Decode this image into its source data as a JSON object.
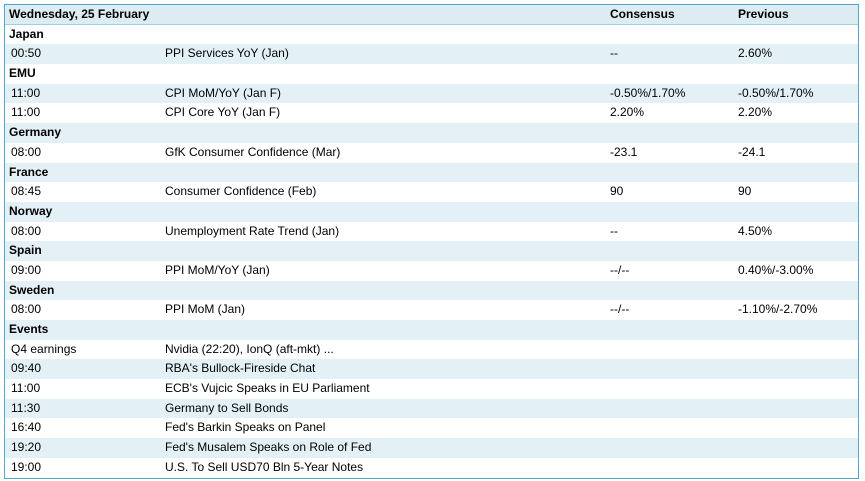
{
  "header": {
    "date": "Wednesday, 25 February",
    "consensus": "Consensus",
    "previous": "Previous"
  },
  "sections": [
    {
      "name": "Japan",
      "rows": [
        [
          "00:50",
          "PPI Services YoY (Jan)",
          "--",
          "2.60%"
        ]
      ]
    },
    {
      "name": "EMU",
      "rows": [
        [
          "11:00",
          "CPI MoM/YoY (Jan F)",
          "-0.50%/1.70%",
          "-0.50%/1.70%"
        ],
        [
          "11:00",
          "CPI Core YoY (Jan F)",
          "2.20%",
          "2.20%"
        ]
      ]
    },
    {
      "name": "Germany",
      "rows": [
        [
          "08:00",
          "GfK Consumer Confidence (Mar)",
          "-23.1",
          "-24.1"
        ]
      ]
    },
    {
      "name": "France",
      "rows": [
        [
          "08:45",
          "Consumer Confidence (Feb)",
          "90",
          "90"
        ]
      ]
    },
    {
      "name": "Norway",
      "rows": [
        [
          "08:00",
          "Unemployment Rate Trend (Jan)",
          "--",
          "4.50%"
        ]
      ]
    },
    {
      "name": "Spain",
      "rows": [
        [
          "09:00",
          "PPI MoM/YoY (Jan)",
          "--/--",
          "0.40%/-3.00%"
        ]
      ]
    },
    {
      "name": "Sweden",
      "rows": [
        [
          "08:00",
          "PPI MoM (Jan)",
          "--/--",
          "-1.10%/-2.70%"
        ]
      ]
    },
    {
      "name": "Events",
      "rows": [
        [
          "Q4 earnings",
          "Nvidia (22:20), IonQ (aft-mkt) ..."
        ],
        [
          "09:40",
          "RBA's Bullock-Fireside Chat"
        ],
        [
          "11:00",
          "ECB's Vujcic Speaks in EU Parliament"
        ],
        [
          "11:30",
          "Germany to Sell Bonds"
        ],
        [
          "16:40",
          "Fed's Barkin Speaks on Panel"
        ],
        [
          "19:20",
          "Fed's Musalem Speaks on Role of Fed"
        ],
        [
          "19:00",
          "U.S. To Sell USD70 Bln 5-Year Notes"
        ]
      ]
    }
  ]
}
